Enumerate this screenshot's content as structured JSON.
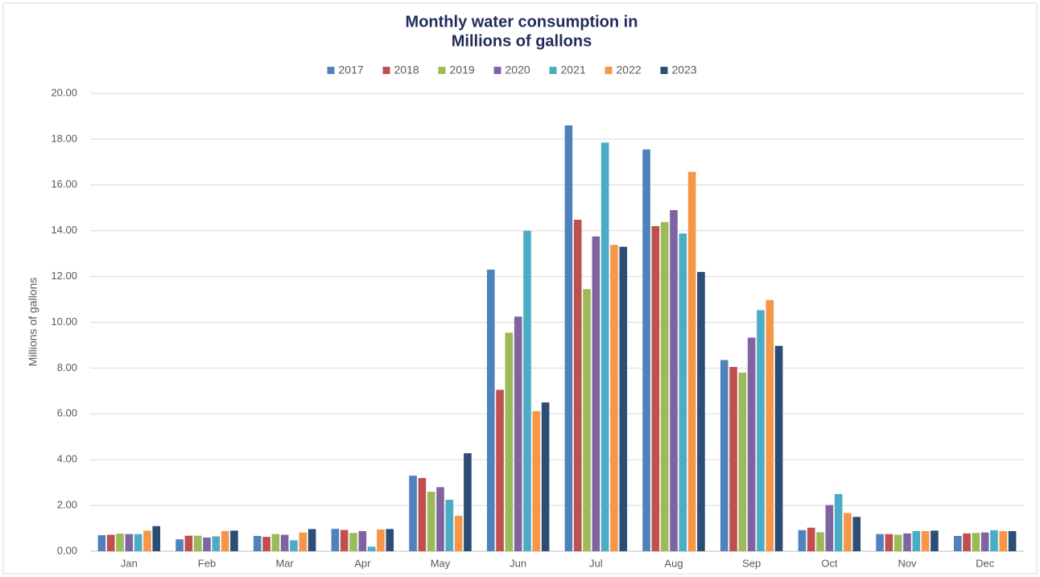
{
  "chart_data": {
    "type": "bar",
    "title": [
      "Monthly water consumption in",
      "Millions of gallons"
    ],
    "y_label": "Millions of gallons",
    "categories": [
      "Jan",
      "Feb",
      "Mar",
      "Apr",
      "May",
      "Jun",
      "Jul",
      "Aug",
      "Sep",
      "Oct",
      "Nov",
      "Dec"
    ],
    "series": [
      {
        "name": "2017",
        "color": "#4f81bd",
        "values": [
          0.7,
          0.52,
          0.67,
          0.98,
          3.3,
          12.3,
          18.6,
          17.55,
          8.35,
          0.92,
          0.75,
          0.67
        ]
      },
      {
        "name": "2018",
        "color": "#c0504d",
        "values": [
          0.72,
          0.68,
          0.63,
          0.93,
          3.2,
          7.05,
          14.48,
          14.2,
          8.05,
          1.03,
          0.75,
          0.78
        ]
      },
      {
        "name": "2019",
        "color": "#9bbb59",
        "values": [
          0.77,
          0.68,
          0.75,
          0.8,
          2.6,
          9.55,
          11.45,
          14.38,
          7.8,
          0.83,
          0.72,
          0.8
        ]
      },
      {
        "name": "2020",
        "color": "#8064a2",
        "values": [
          0.75,
          0.6,
          0.72,
          0.88,
          2.8,
          10.25,
          13.75,
          14.9,
          9.33,
          2.02,
          0.78,
          0.82
        ]
      },
      {
        "name": "2021",
        "color": "#4bacc6",
        "values": [
          0.75,
          0.65,
          0.48,
          0.2,
          2.25,
          14.0,
          17.85,
          13.88,
          10.53,
          2.5,
          0.88,
          0.92
        ]
      },
      {
        "name": "2022",
        "color": "#f79646",
        "values": [
          0.9,
          0.88,
          0.82,
          0.95,
          1.55,
          6.12,
          13.38,
          16.57,
          10.97,
          1.67,
          0.88,
          0.88
        ]
      },
      {
        "name": "2023",
        "color": "#2c4d75",
        "values": [
          1.1,
          0.9,
          0.97,
          0.97,
          4.28,
          6.5,
          13.3,
          12.2,
          8.97,
          1.5,
          0.9,
          0.88
        ]
      }
    ],
    "ylim": [
      0,
      20
    ],
    "yticks": [
      {
        "value": 0,
        "label": "0.00"
      },
      {
        "value": 2,
        "label": "2.00"
      },
      {
        "value": 4,
        "label": "4.00"
      },
      {
        "value": 6,
        "label": "6.00"
      },
      {
        "value": 8,
        "label": "8.00"
      },
      {
        "value": 10,
        "label": "10.00"
      },
      {
        "value": 12,
        "label": "12.00"
      },
      {
        "value": 14,
        "label": "14.00"
      },
      {
        "value": 16,
        "label": "16.00"
      },
      {
        "value": 18,
        "label": "18.00"
      },
      {
        "value": 20,
        "label": "20.00"
      }
    ],
    "grid": true,
    "legend": "top"
  }
}
